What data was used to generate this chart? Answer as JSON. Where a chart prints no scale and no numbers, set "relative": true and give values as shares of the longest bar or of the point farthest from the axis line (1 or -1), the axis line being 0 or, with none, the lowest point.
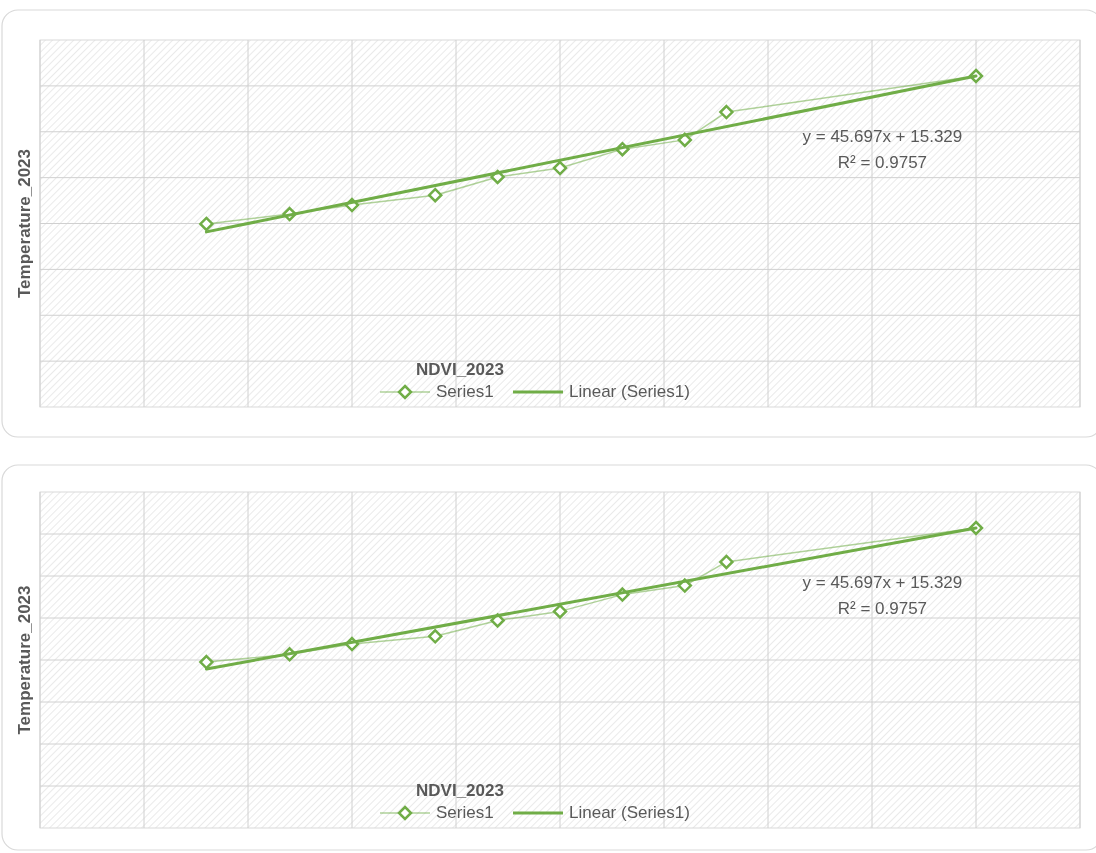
{
  "chart_data": [
    {
      "type": "line",
      "relative": true,
      "xlabel": "NDVI_2023",
      "ylabel": "Temperature_2023",
      "categories": [
        null,
        null,
        null,
        null,
        null,
        null,
        null,
        null,
        null,
        null,
        null,
        null,
        null,
        null,
        null,
        null,
        null,
        null,
        null,
        null,
        null,
        null,
        null,
        null,
        null,
        null,
        null,
        null,
        null,
        null,
        null,
        null,
        null,
        null,
        null,
        null,
        null,
        null,
        null,
        null,
        null,
        null,
        null,
        null,
        null,
        null,
        null,
        null,
        null,
        null,
        null
      ],
      "grid": true,
      "legend": "bottom",
      "annotations": [
        "y = 45.697x + 15.329",
        "R² = 0.9757"
      ],
      "series": [
        {
          "name": "Series1",
          "marker": "diamond",
          "color": "#70ad47",
          "values": [
            null,
            null,
            null,
            null,
            null,
            null,
            null,
            null,
            0.553,
            null,
            null,
            null,
            0.583,
            null,
            null,
            0.61,
            null,
            null,
            null,
            0.64,
            null,
            null,
            0.695,
            null,
            null,
            0.722,
            null,
            null,
            0.779,
            null,
            null,
            0.807,
            null,
            0.891,
            null,
            null,
            null,
            null,
            null,
            null,
            null,
            null,
            null,
            null,
            null,
            1,
            null,
            null,
            null,
            null,
            null
          ]
        },
        {
          "name": "Linear (Series1)",
          "marker": "none",
          "color": "#70ad47",
          "values": [
            null,
            null,
            null,
            null,
            null,
            null,
            null,
            null,
            0.529,
            null,
            null,
            null,
            null,
            null,
            null,
            null,
            null,
            null,
            null,
            null,
            null,
            null,
            null,
            null,
            null,
            null,
            null,
            null,
            null,
            null,
            null,
            null,
            null,
            null,
            null,
            null,
            null,
            null,
            null,
            null,
            null,
            null,
            null,
            null,
            null,
            1,
            null,
            null,
            null,
            null,
            null
          ]
        }
      ]
    },
    {
      "type": "line",
      "relative": true,
      "xlabel": "NDVI_2023",
      "ylabel": "Temperature_2023",
      "categories": [
        null,
        null,
        null,
        null,
        null,
        null,
        null,
        null,
        null,
        null,
        null,
        null,
        null,
        null,
        null,
        null,
        null,
        null,
        null,
        null,
        null,
        null,
        null,
        null,
        null,
        null,
        null,
        null,
        null,
        null,
        null,
        null,
        null,
        null,
        null,
        null,
        null,
        null,
        null,
        null,
        null,
        null,
        null,
        null,
        null,
        null,
        null,
        null,
        null,
        null,
        null
      ],
      "grid": true,
      "legend": "bottom",
      "annotations": [
        "y = 45.697x + 15.329",
        "R² = 0.9757"
      ],
      "series": [
        {
          "name": "Series1",
          "marker": "diamond",
          "color": "#70ad47",
          "values": [
            null,
            null,
            null,
            null,
            null,
            null,
            null,
            null,
            0.553,
            null,
            null,
            null,
            0.579,
            null,
            null,
            0.613,
            null,
            null,
            null,
            0.639,
            null,
            null,
            0.692,
            null,
            null,
            0.722,
            null,
            null,
            0.778,
            null,
            null,
            0.808,
            null,
            0.887,
            null,
            null,
            null,
            null,
            null,
            null,
            null,
            null,
            null,
            null,
            null,
            1,
            null,
            null,
            null,
            null,
            null
          ]
        },
        {
          "name": "Linear (Series1)",
          "marker": "none",
          "color": "#70ad47",
          "values": [
            null,
            null,
            null,
            null,
            null,
            null,
            null,
            null,
            0.53,
            null,
            null,
            null,
            null,
            null,
            null,
            null,
            null,
            null,
            null,
            null,
            null,
            null,
            null,
            null,
            null,
            null,
            null,
            null,
            null,
            null,
            null,
            null,
            null,
            null,
            null,
            null,
            null,
            null,
            null,
            null,
            null,
            null,
            null,
            null,
            null,
            1,
            null,
            null,
            null,
            null,
            null
          ]
        }
      ]
    }
  ]
}
